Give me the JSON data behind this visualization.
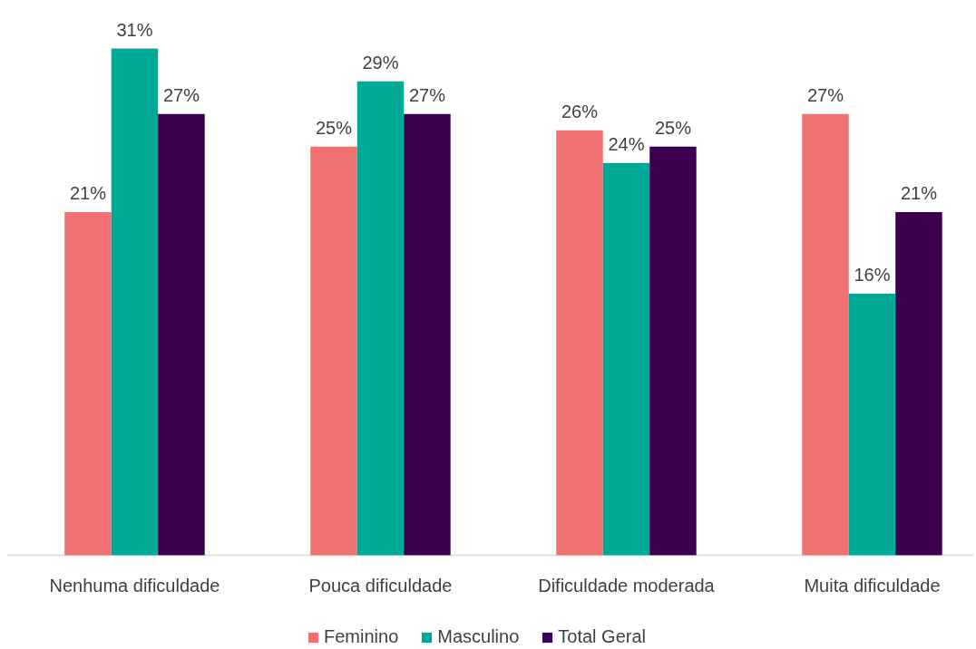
{
  "chart_data": {
    "type": "bar",
    "categories": [
      "Nenhuma dificuldade",
      "Pouca dificuldade",
      "Dificuldade moderada",
      "Muita dificuldade"
    ],
    "series": [
      {
        "name": "Feminino",
        "color": "#f07171",
        "values": [
          21,
          25,
          26,
          27
        ],
        "value_labels": [
          "21%",
          "25%",
          "26%",
          "27%"
        ]
      },
      {
        "name": "Masculino",
        "color": "#00a996",
        "values": [
          31,
          29,
          24,
          16
        ],
        "value_labels": [
          "31%",
          "29%",
          "24%",
          "16%"
        ]
      },
      {
        "name": "Total Geral",
        "color": "#3c004f",
        "values": [
          27,
          27,
          25,
          21
        ],
        "value_labels": [
          "27%",
          "27%",
          "25%",
          "21%"
        ]
      }
    ],
    "grid": false,
    "legend": "bottom"
  }
}
